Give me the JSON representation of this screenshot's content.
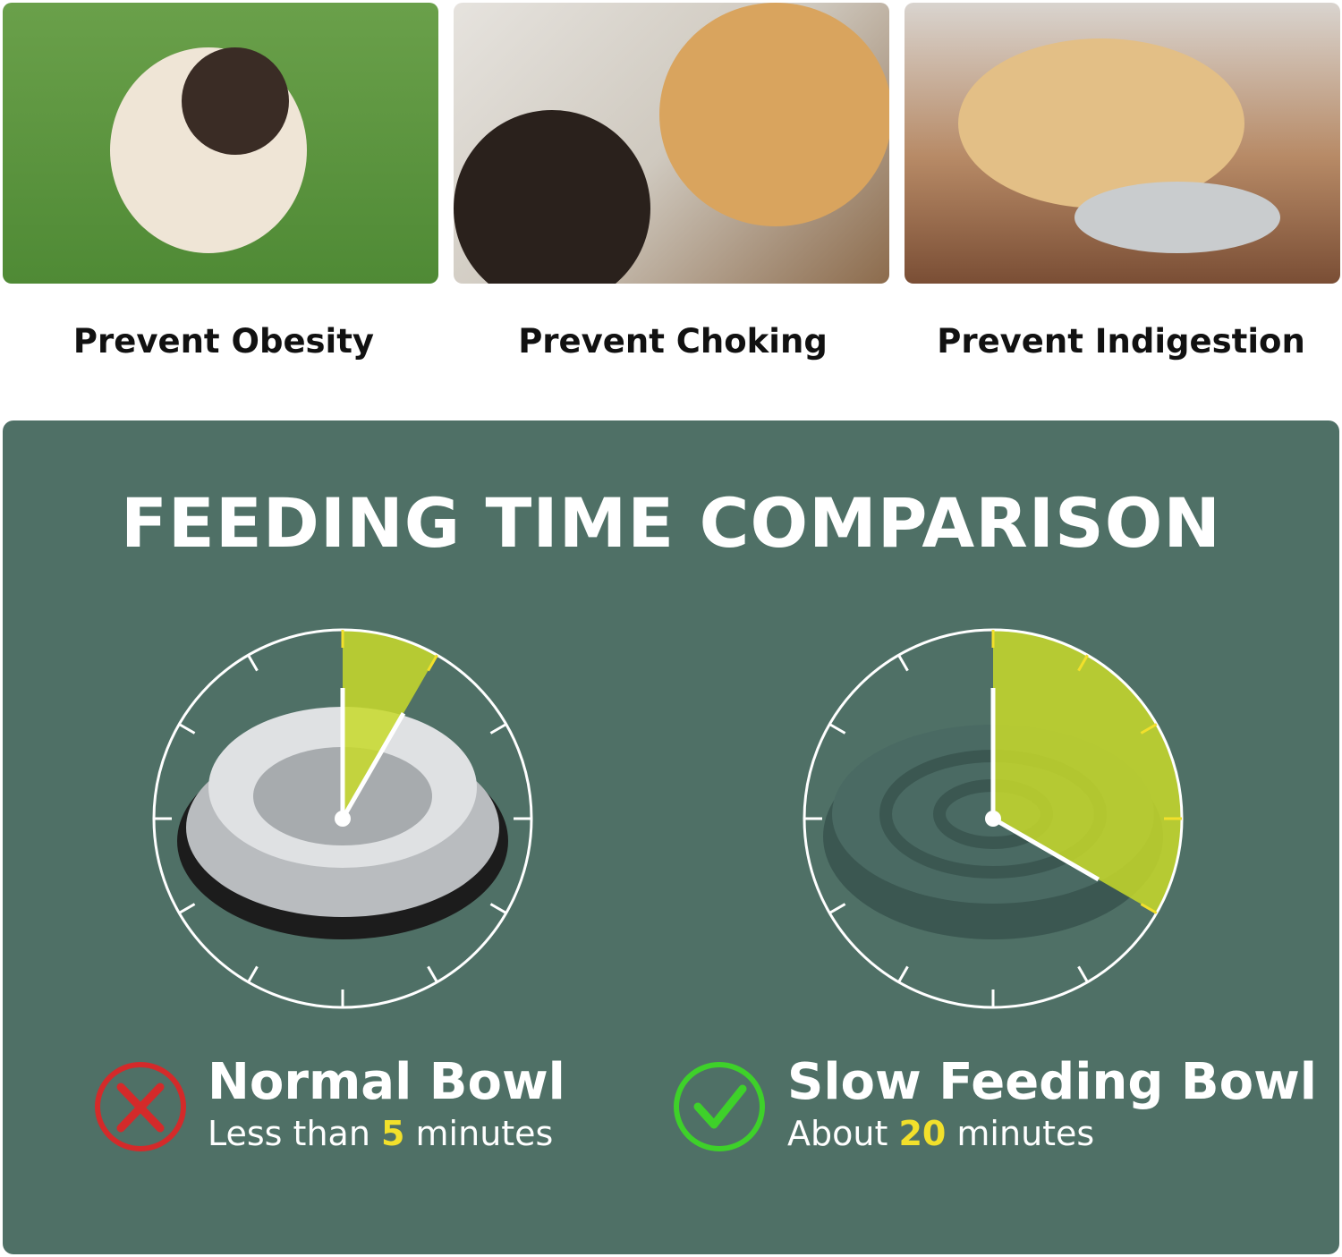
{
  "benefits": [
    {
      "label": "Prevent Obesity"
    },
    {
      "label": "Prevent Choking"
    },
    {
      "label": "Prevent Indigestion"
    }
  ],
  "comparison": {
    "title": "FEEDING TIME COMPARISON",
    "accent_color": "#c8d92a",
    "background_color": "#4f7066",
    "normal": {
      "name": "Normal Bowl",
      "prefix": "Less than ",
      "value": "5",
      "suffix": " minutes",
      "minutes": 5,
      "icon": "x-circle-icon",
      "icon_color": "#d42a2a"
    },
    "slow": {
      "name": "Slow Feeding Bowl",
      "prefix": "About ",
      "value": "20",
      "suffix": " minutes",
      "minutes": 20,
      "icon": "check-circle-icon",
      "icon_color": "#3ed12a"
    }
  }
}
